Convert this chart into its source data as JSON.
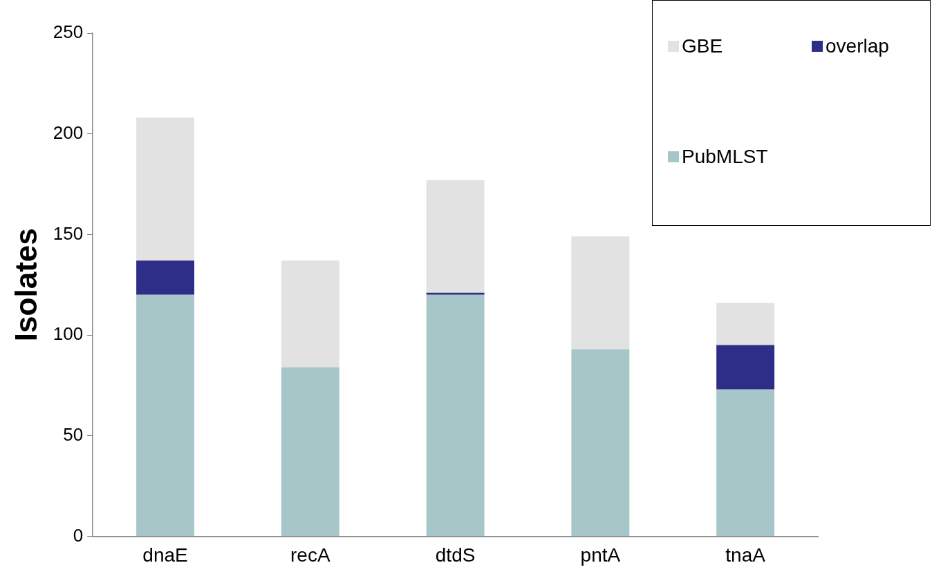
{
  "chart_data": {
    "type": "bar",
    "stacked": true,
    "ylabel": "Isolates",
    "categories": [
      "dnaE",
      "recA",
      "dtdS",
      "pntA",
      "tnaA"
    ],
    "series": [
      {
        "name": "PubMLST",
        "color": "#a6c6c8",
        "values": [
          120,
          84,
          120,
          93,
          73
        ]
      },
      {
        "name": "overlap",
        "color": "#2e2d88",
        "values": [
          17,
          0,
          1,
          0,
          22
        ]
      },
      {
        "name": "GBE",
        "color": "#e2e2e2",
        "values": [
          71,
          53,
          56,
          56,
          21
        ]
      }
    ],
    "ylim": [
      0,
      250
    ],
    "yticks": [
      0,
      50,
      100,
      150,
      200,
      250
    ],
    "grid": false,
    "legend": "top right"
  }
}
